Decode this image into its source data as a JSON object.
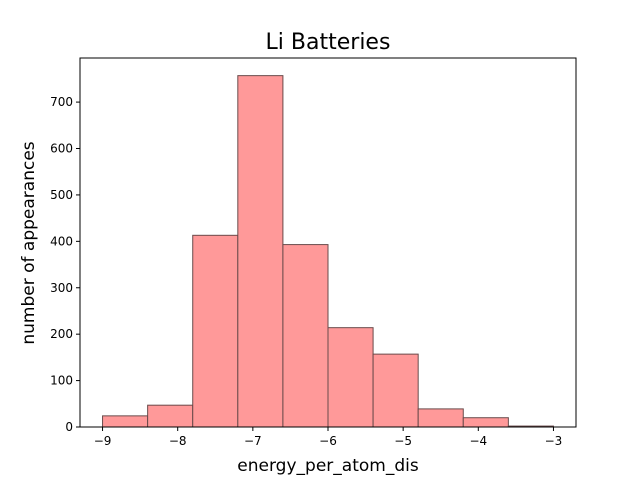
{
  "chart_data": {
    "type": "bar",
    "title": "Li Batteries",
    "xlabel": "energy_per_atom_dis",
    "ylabel": "number of appearances",
    "bin_edges": [
      -9.0,
      -8.4,
      -7.8,
      -7.2,
      -6.6,
      -6.0,
      -5.4,
      -4.8,
      -4.2,
      -3.6,
      -3.0
    ],
    "values": [
      24,
      47,
      413,
      757,
      393,
      214,
      157,
      39,
      20,
      2
    ],
    "xlim": [
      -9.3,
      -2.7
    ],
    "ylim": [
      0,
      795
    ],
    "xticks": [
      -9,
      -8,
      -7,
      -6,
      -5,
      -4,
      -3
    ],
    "xtick_labels": [
      "−9",
      "−8",
      "−7",
      "−6",
      "−5",
      "−4",
      "−3"
    ],
    "yticks": [
      0,
      100,
      200,
      300,
      400,
      500,
      600,
      700
    ],
    "ytick_labels": [
      "0",
      "100",
      "200",
      "300",
      "400",
      "500",
      "600",
      "700"
    ],
    "grid": false,
    "bar_color": "#ff9999",
    "edge_color": "#6a4a4a"
  }
}
